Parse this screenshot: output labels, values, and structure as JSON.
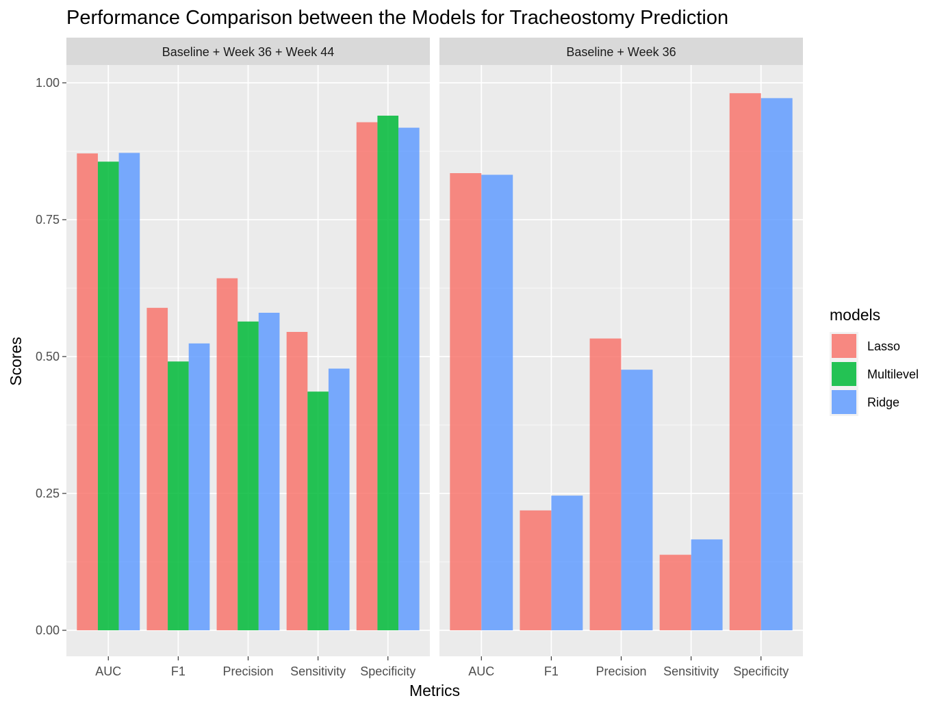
{
  "chart_data": {
    "type": "bar",
    "title": "Performance Comparison between the Models for Tracheostomy Prediction",
    "xlabel": "Metrics",
    "ylabel": "Scores",
    "ylim": [
      -0.05,
      1.04
    ],
    "yticks": [
      0,
      0.25,
      0.5,
      0.75,
      1.0
    ],
    "ytick_labels": [
      "0.00",
      "0.25",
      "0.50",
      "0.75",
      "1.00"
    ],
    "grid": true,
    "legend": {
      "title": "models",
      "position": "right",
      "entries": [
        {
          "name": "Lasso",
          "color": "#F8766D"
        },
        {
          "name": "Multilevel",
          "color": "#00BA38"
        },
        {
          "name": "Ridge",
          "color": "#619CFF"
        }
      ]
    },
    "bar_opacity": 0.85,
    "panels": [
      {
        "strip": "Baseline + Week 36 + Week 44",
        "categories": [
          "AUC",
          "F1",
          "Precision",
          "Sensitivity",
          "Specificity"
        ],
        "series": [
          {
            "name": "Lasso",
            "values": [
              0.871,
              0.589,
              0.643,
              0.545,
              0.928
            ]
          },
          {
            "name": "Multilevel",
            "values": [
              0.856,
              0.491,
              0.564,
              0.436,
              0.94
            ]
          },
          {
            "name": "Ridge",
            "values": [
              0.872,
              0.524,
              0.58,
              0.478,
              0.918
            ]
          }
        ]
      },
      {
        "strip": "Baseline + Week 36",
        "categories": [
          "AUC",
          "F1",
          "Precision",
          "Sensitivity",
          "Specificity"
        ],
        "series": [
          {
            "name": "Lasso",
            "values": [
              0.835,
              0.219,
              0.533,
              0.138,
              0.981
            ]
          },
          {
            "name": "Ridge",
            "values": [
              0.832,
              0.246,
              0.476,
              0.166,
              0.972
            ]
          }
        ]
      }
    ]
  }
}
